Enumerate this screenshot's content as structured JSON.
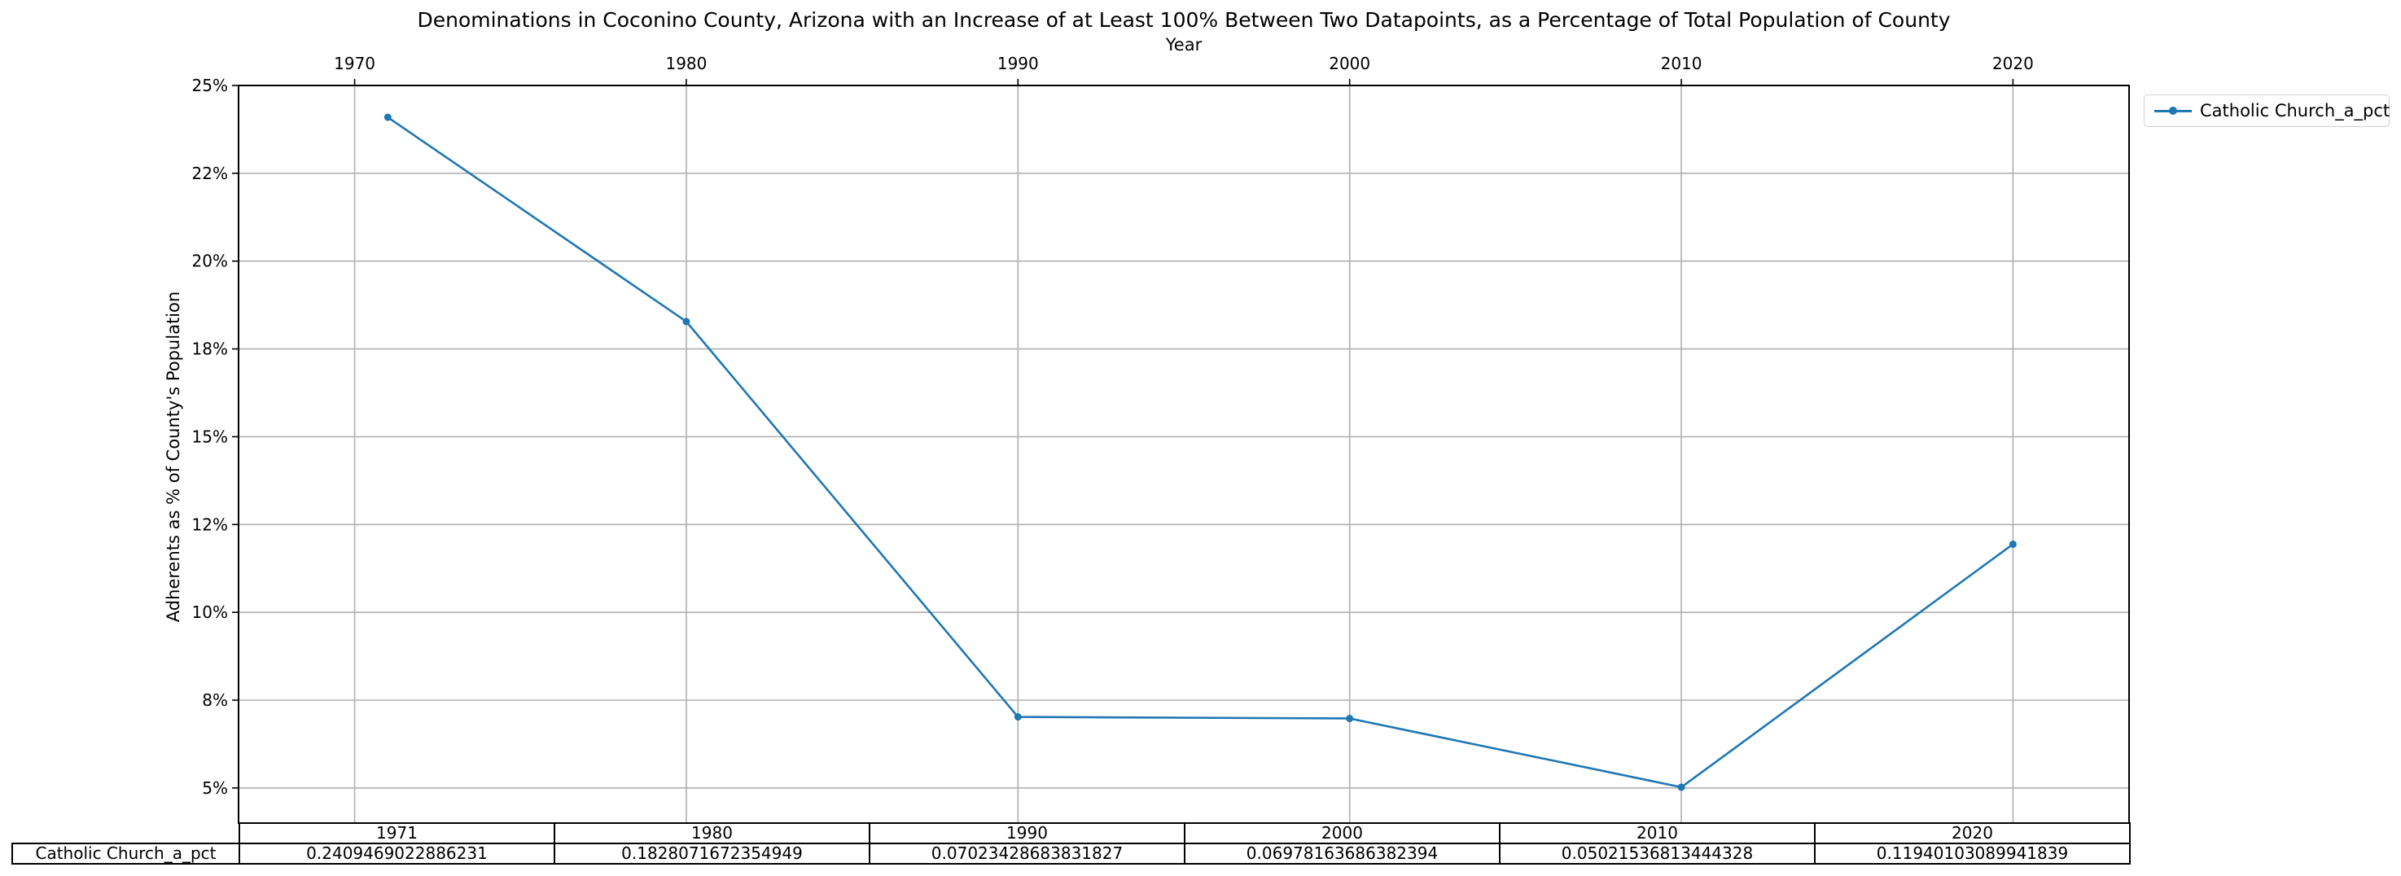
{
  "chart_data": {
    "type": "line",
    "title": "Denominations in Coconino County, Arizona with an Increase of at Least 100% Between Two Datapoints, as a Percentage of Total Population of County",
    "xlabel": "Year",
    "ylabel": "Adherents as % of County's Population",
    "xlim": [
      1966.5,
      2023.5
    ],
    "ylim": [
      0.04,
      0.25
    ],
    "x_ticks": [
      1970,
      1980,
      1990,
      2000,
      2010,
      2020
    ],
    "y_ticks": [
      0.05,
      0.075,
      0.1,
      0.125,
      0.15,
      0.175,
      0.2,
      0.225,
      0.25
    ],
    "y_tick_labels": [
      "5%",
      "8%",
      "10%",
      "12%",
      "15%",
      "18%",
      "20%",
      "22%",
      "25%"
    ],
    "grid": true,
    "legend_position": "outside-top-right",
    "series": [
      {
        "name": "Catholic Church_a_pct",
        "color": "#1f77b4",
        "x": [
          1971,
          1980,
          1990,
          2000,
          2010,
          2020
        ],
        "values": [
          0.2409469022886231,
          0.1828071672354949,
          0.07023428683831827,
          0.06978163686382394,
          0.05021536813444328,
          0.11940103089941839
        ]
      }
    ],
    "table": {
      "columns": [
        "1971",
        "1980",
        "1990",
        "2000",
        "2010",
        "2020"
      ],
      "row_label": "Catholic Church_a_pct",
      "cells": [
        "0.2409469022886231",
        "0.1828071672354949",
        "0.07023428683831827",
        "0.06978163686382394",
        "0.05021536813444328",
        "0.11940103089941839"
      ]
    }
  }
}
